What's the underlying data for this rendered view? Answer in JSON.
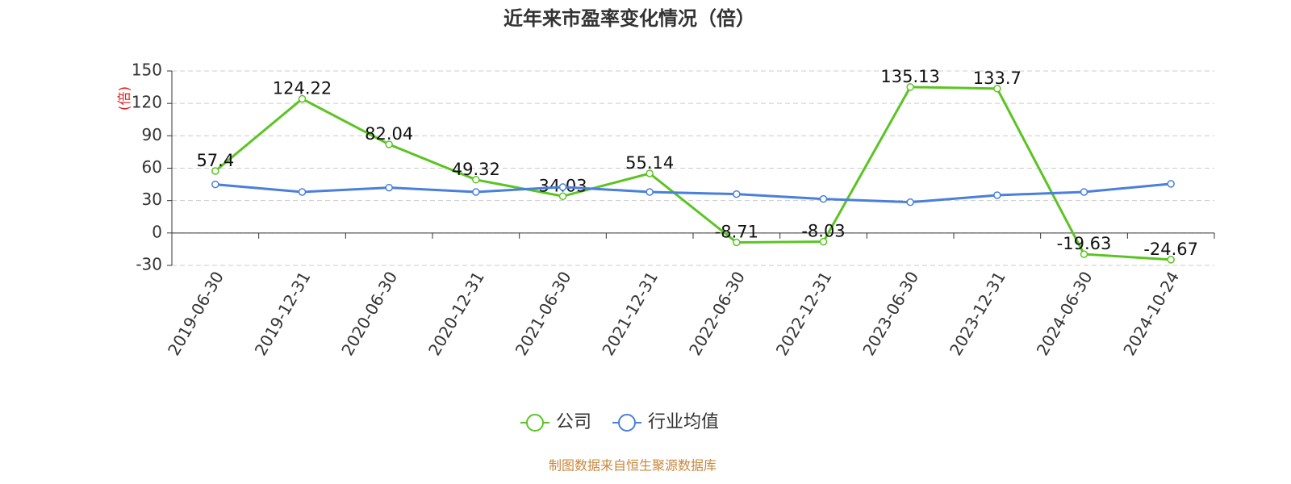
{
  "chart_data": {
    "type": "line",
    "title": "近年来市盈率变化情况（倍）",
    "y_label": "(倍)",
    "source": "制图数据来自恒生聚源数据库",
    "categories": [
      "2019-06-30",
      "2019-12-31",
      "2020-06-30",
      "2020-12-31",
      "2021-06-30",
      "2021-12-31",
      "2022-06-30",
      "2022-12-31",
      "2023-06-30",
      "2023-12-31",
      "2024-06-30",
      "2024-10-24"
    ],
    "series": [
      {
        "name": "公司",
        "color": "#5bc423",
        "show_labels": true,
        "values": [
          57.4,
          124.22,
          82.04,
          49.32,
          34.03,
          55.14,
          -8.71,
          -8.03,
          135.13,
          133.7,
          -19.63,
          -24.67
        ]
      },
      {
        "name": "行业均值",
        "color": "#4a7fdc",
        "show_labels": false,
        "values": [
          45,
          38,
          42,
          38,
          42.5,
          38,
          36,
          31.5,
          28.5,
          35,
          38,
          45.5
        ]
      }
    ],
    "ylim": [
      -30,
      150
    ],
    "yticks": [
      -30,
      0,
      30,
      60,
      90,
      120,
      150
    ],
    "grid": true,
    "legend": "bottom"
  }
}
